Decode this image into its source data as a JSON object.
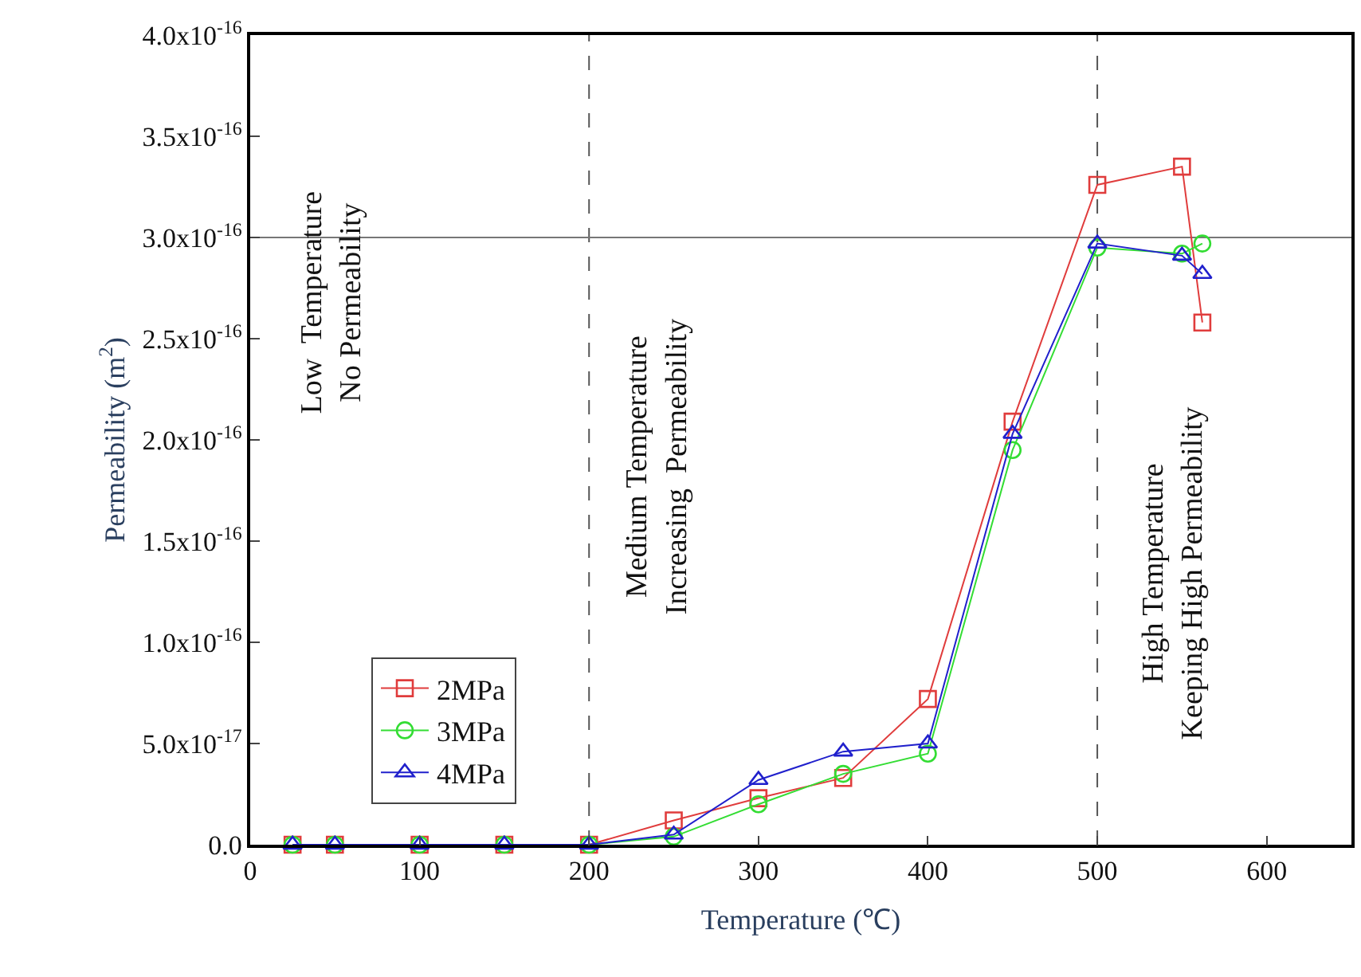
{
  "chart_data": {
    "type": "line",
    "xlabel": "Temperature (℃)",
    "ylabel": "Permeability (m$^{2}$)",
    "xlim": [
      0,
      650
    ],
    "xticks": [
      0,
      100,
      200,
      300,
      400,
      500,
      600
    ],
    "ylim": [
      0,
      4e-16
    ],
    "yticks": [
      {
        "value": 0,
        "label": "0.0"
      },
      {
        "value": 5e-17,
        "label": "5.0x10$^{-17}$"
      },
      {
        "value": 1e-16,
        "label": "1.0x10$^{-16}$"
      },
      {
        "value": 1.5e-16,
        "label": "1.5x10$^{-16}$"
      },
      {
        "value": 2e-16,
        "label": "2.0x10$^{-16}$"
      },
      {
        "value": 2.5e-16,
        "label": "2.5x10$^{-16}$"
      },
      {
        "value": 3e-16,
        "label": "3.0x10$^{-16}$"
      },
      {
        "value": 3.5e-16,
        "label": "3.5x10$^{-16}$"
      },
      {
        "value": 4e-16,
        "label": "4.0x10$^{-16}$"
      }
    ],
    "x": [
      25,
      50,
      100,
      150,
      200,
      250,
      300,
      350,
      400,
      450,
      500,
      550,
      562
    ],
    "series": [
      {
        "name": "2MPa",
        "color": "#e03c3c",
        "marker": "square",
        "values": [
          0,
          0,
          0,
          0,
          0,
          1.2e-17,
          2.3e-17,
          3.3e-17,
          7.2e-17,
          2.09e-16,
          3.26e-16,
          3.35e-16,
          2.58e-16
        ]
      },
      {
        "name": "3MPa",
        "color": "#33dd33",
        "marker": "circle",
        "values": [
          0,
          0,
          0,
          0,
          0,
          4e-18,
          2e-17,
          3.5e-17,
          4.5e-17,
          1.95e-16,
          2.95e-16,
          2.92e-16,
          2.97e-16
        ]
      },
      {
        "name": "4MPa",
        "color": "#2020cc",
        "marker": "triangle",
        "values": [
          0,
          0,
          0,
          0,
          0,
          5e-18,
          3.2e-17,
          4.6e-17,
          5e-17,
          2.03e-16,
          2.97e-16,
          2.91e-16,
          2.82e-16
        ]
      }
    ],
    "ref_lines": [
      {
        "axis": "x",
        "value": 200,
        "line_style": "dashed",
        "color": "#555555"
      },
      {
        "axis": "x",
        "value": 500,
        "line_style": "dashed",
        "color": "#555555"
      },
      {
        "axis": "y",
        "value": 3e-16,
        "line_style": "solid",
        "color": "#777777"
      }
    ],
    "annotations": [
      "Low  Temperature\nNo Permeability",
      "Medium Temperature\nIncreasing  Permeability",
      "High Temperature\nKeeping High Permeability"
    ],
    "legend": "bottom left",
    "grid": false
  }
}
